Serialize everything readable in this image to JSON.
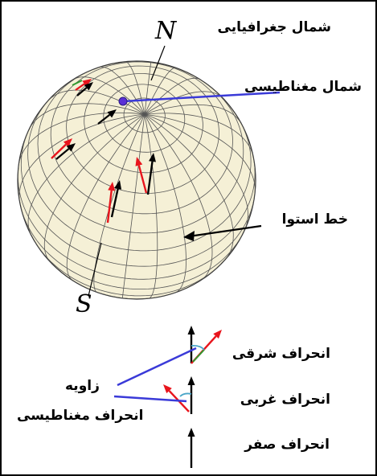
{
  "labels": {
    "north_pole": "N",
    "south_pole": "S",
    "geographic_north": "شمال جغرافیایی",
    "magnetic_north": "شمال مغناطیسی",
    "equator": "خط استوا",
    "east_declination": "انحراف شرقی",
    "west_declination": "انحراف غربی",
    "zero_declination": "انحراف صفر",
    "angle_word": "زاویه",
    "magnetic_declination": "انحراف مغناطیسی"
  },
  "colors": {
    "globe_fill": "#f5f0d6",
    "grid_lines": "#555555",
    "geographic_arrow": "#000000",
    "magnetic_arrow": "#e8141c",
    "pointer_line": "#3a3ad8",
    "magnetic_pole_dot": "#5a2fd6",
    "angle_arc": "#4aa6c8",
    "compass_green": "#2f9a2f"
  }
}
